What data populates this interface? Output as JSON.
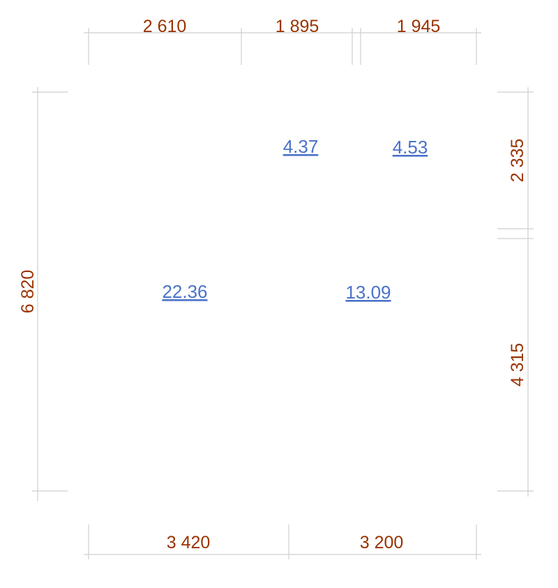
{
  "dimensions": {
    "top": [
      "2 610",
      "1 895",
      "1 945"
    ],
    "bottom": [
      "3 420",
      "3 200"
    ],
    "left": [
      "6 820"
    ],
    "right": [
      "2 335",
      "4 315"
    ]
  },
  "areas": [
    "4.37",
    "4.53",
    "22.36",
    "13.09"
  ]
}
